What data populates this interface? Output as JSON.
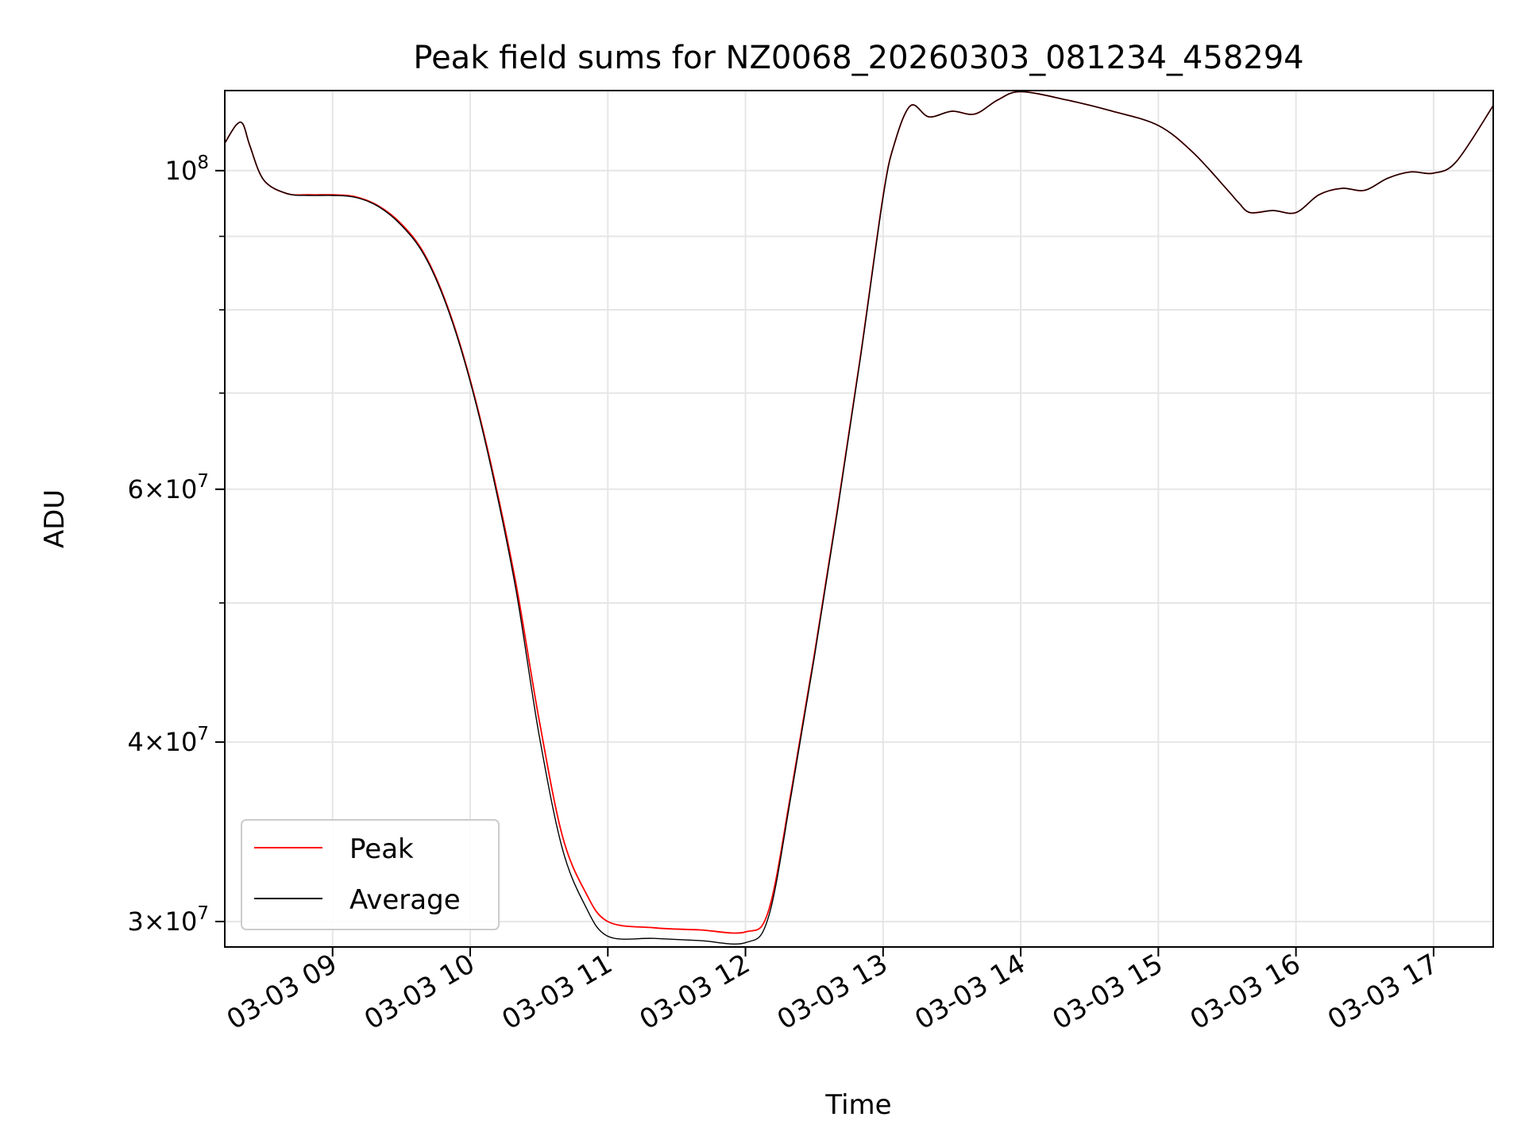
{
  "chart_data": {
    "type": "line",
    "title": "Peak field sums for NZ0068_20260303_081234_458294",
    "xlabel": "Time",
    "ylabel": "ADU",
    "yscale": "log",
    "grid": true,
    "legend_position": "lower-left",
    "xlim": [
      "2026-03-03 08:13",
      "2026-03-03 17:26"
    ],
    "ylim": [
      28800000,
      113700000
    ],
    "x_ticks": [
      "2026-03-03 09:00",
      "2026-03-03 10:00",
      "2026-03-03 11:00",
      "2026-03-03 12:00",
      "2026-03-03 13:00",
      "2026-03-03 14:00",
      "2026-03-03 15:00",
      "2026-03-03 16:00",
      "2026-03-03 17:00"
    ],
    "x_tick_labels": [
      "03-03 09",
      "03-03 10",
      "03-03 11",
      "03-03 12",
      "03-03 13",
      "03-03 14",
      "03-03 15",
      "03-03 16",
      "03-03 17"
    ],
    "y_ticks": [
      {
        "value": 100000000,
        "base": "10",
        "exp": "8"
      },
      {
        "value": 60000000,
        "base": "6×10",
        "exp": "7"
      },
      {
        "value": 40000000,
        "base": "4×10",
        "exp": "7"
      },
      {
        "value": 30000000,
        "base": "3×10",
        "exp": "7"
      }
    ],
    "y_minor_ticks": [
      90000000,
      80000000,
      70000000,
      50000000
    ],
    "series": [
      {
        "name": "Peak",
        "color": "#ff0000",
        "x": [
          "2026-03-03 08:13",
          "2026-03-03 08:18",
          "2026-03-03 08:21",
          "2026-03-03 08:24",
          "2026-03-03 08:30",
          "2026-03-03 08:40",
          "2026-03-03 08:50",
          "2026-03-03 09:00",
          "2026-03-03 09:10",
          "2026-03-03 09:20",
          "2026-03-03 09:30",
          "2026-03-03 09:40",
          "2026-03-03 09:50",
          "2026-03-03 10:00",
          "2026-03-03 10:10",
          "2026-03-03 10:20",
          "2026-03-03 10:30",
          "2026-03-03 10:40",
          "2026-03-03 10:50",
          "2026-03-03 11:00",
          "2026-03-03 11:20",
          "2026-03-03 11:40",
          "2026-03-03 12:00",
          "2026-03-03 12:10",
          "2026-03-03 12:20",
          "2026-03-03 12:30",
          "2026-03-03 12:40",
          "2026-03-03 12:50",
          "2026-03-03 13:00",
          "2026-03-03 13:05",
          "2026-03-03 13:12",
          "2026-03-03 13:20",
          "2026-03-03 13:30",
          "2026-03-03 13:40",
          "2026-03-03 13:50",
          "2026-03-03 14:00",
          "2026-03-03 14:20",
          "2026-03-03 14:40",
          "2026-03-03 15:00",
          "2026-03-03 15:15",
          "2026-03-03 15:30",
          "2026-03-03 15:35",
          "2026-03-03 15:40",
          "2026-03-03 15:50",
          "2026-03-03 16:00",
          "2026-03-03 16:10",
          "2026-03-03 16:20",
          "2026-03-03 16:30",
          "2026-03-03 16:40",
          "2026-03-03 16:50",
          "2026-03-03 17:00",
          "2026-03-03 17:10",
          "2026-03-03 17:26"
        ],
        "y": [
          104500000,
          107600000,
          107700000,
          104000000,
          98500000,
          96400000,
          96200000,
          96200000,
          95900000,
          94500000,
          91800000,
          87500000,
          80500000,
          71500000,
          61500000,
          51500000,
          41500000,
          34500000,
          31500000,
          30000000,
          29700000,
          29600000,
          29500000,
          30500000,
          37000000,
          46000000,
          58000000,
          74000000,
          96000000,
          104500000,
          111000000,
          109000000,
          110000000,
          109500000,
          112000000,
          113500000,
          112000000,
          110000000,
          107500000,
          103000000,
          97000000,
          95000000,
          93500000,
          93800000,
          93500000,
          96200000,
          97200000,
          96900000,
          98800000,
          99800000,
          99600000,
          101500000,
          111000000
        ]
      },
      {
        "name": "Average",
        "color": "#000000",
        "x": [
          "2026-03-03 08:13",
          "2026-03-03 08:18",
          "2026-03-03 08:21",
          "2026-03-03 08:24",
          "2026-03-03 08:30",
          "2026-03-03 08:40",
          "2026-03-03 08:50",
          "2026-03-03 09:00",
          "2026-03-03 09:10",
          "2026-03-03 09:20",
          "2026-03-03 09:30",
          "2026-03-03 09:40",
          "2026-03-03 09:50",
          "2026-03-03 10:00",
          "2026-03-03 10:10",
          "2026-03-03 10:20",
          "2026-03-03 10:30",
          "2026-03-03 10:40",
          "2026-03-03 10:50",
          "2026-03-03 11:00",
          "2026-03-03 11:20",
          "2026-03-03 11:40",
          "2026-03-03 12:00",
          "2026-03-03 12:10",
          "2026-03-03 12:20",
          "2026-03-03 12:30",
          "2026-03-03 12:40",
          "2026-03-03 12:50",
          "2026-03-03 13:00",
          "2026-03-03 13:05",
          "2026-03-03 13:12",
          "2026-03-03 13:20",
          "2026-03-03 13:30",
          "2026-03-03 13:40",
          "2026-03-03 13:50",
          "2026-03-03 14:00",
          "2026-03-03 14:20",
          "2026-03-03 14:40",
          "2026-03-03 15:00",
          "2026-03-03 15:15",
          "2026-03-03 15:30",
          "2026-03-03 15:35",
          "2026-03-03 15:40",
          "2026-03-03 15:50",
          "2026-03-03 16:00",
          "2026-03-03 16:10",
          "2026-03-03 16:20",
          "2026-03-03 16:30",
          "2026-03-03 16:40",
          "2026-03-03 16:50",
          "2026-03-03 17:00",
          "2026-03-03 17:10",
          "2026-03-03 17:26"
        ],
        "y": [
          104500000,
          107600000,
          107700000,
          104000000,
          98500000,
          96400000,
          96100000,
          96100000,
          95800000,
          94400000,
          91600000,
          87300000,
          80300000,
          71300000,
          61200000,
          51000000,
          40500000,
          33800000,
          30800000,
          29300000,
          29200000,
          29100000,
          29000000,
          30200000,
          36800000,
          45800000,
          57800000,
          73800000,
          95800000,
          104500000,
          111000000,
          109000000,
          110000000,
          109500000,
          112000000,
          113500000,
          112000000,
          110000000,
          107500000,
          103000000,
          97000000,
          95000000,
          93500000,
          93800000,
          93500000,
          96200000,
          97200000,
          96900000,
          98800000,
          99800000,
          99600000,
          101500000,
          111000000
        ]
      }
    ]
  }
}
